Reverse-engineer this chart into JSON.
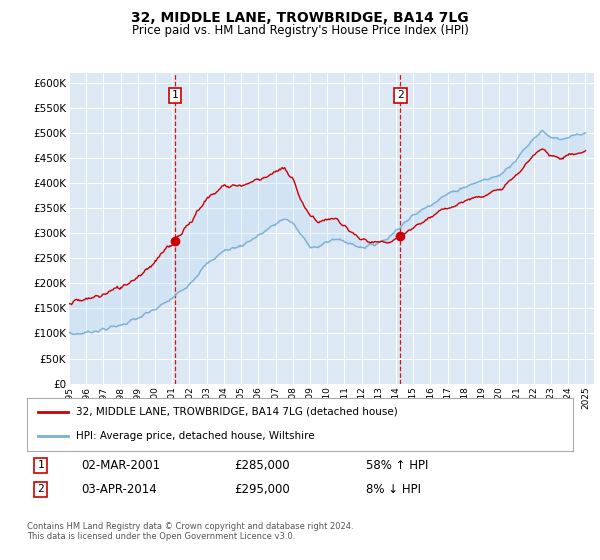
{
  "title": "32, MIDDLE LANE, TROWBRIDGE, BA14 7LG",
  "subtitle": "Price paid vs. HM Land Registry's House Price Index (HPI)",
  "legend_line1": "32, MIDDLE LANE, TROWBRIDGE, BA14 7LG (detached house)",
  "legend_line2": "HPI: Average price, detached house, Wiltshire",
  "sale1_date": "02-MAR-2001",
  "sale1_price": 285000,
  "sale1_pct": "58% ↑ HPI",
  "sale1_x": 2001.17,
  "sale2_date": "03-APR-2014",
  "sale2_price": 295000,
  "sale2_pct": "8% ↓ HPI",
  "sale2_x": 2014.25,
  "ylabel_ticks": [
    "£0",
    "£50K",
    "£100K",
    "£150K",
    "£200K",
    "£250K",
    "£300K",
    "£350K",
    "£400K",
    "£450K",
    "£500K",
    "£550K",
    "£600K"
  ],
  "ytick_vals": [
    0,
    50000,
    100000,
    150000,
    200000,
    250000,
    300000,
    350000,
    400000,
    450000,
    500000,
    550000,
    600000
  ],
  "xlim": [
    1995.0,
    2025.5
  ],
  "ylim": [
    0,
    620000
  ],
  "background_color": "#dce9f5",
  "line_color_red": "#cc0000",
  "line_color_blue": "#7ab0d4",
  "sale_dot_color": "#cc0000",
  "footer": "Contains HM Land Registry data © Crown copyright and database right 2024.\nThis data is licensed under the Open Government Licence v3.0.",
  "xtick_years": [
    1995,
    1996,
    1997,
    1998,
    1999,
    2000,
    2001,
    2002,
    2003,
    2004,
    2005,
    2006,
    2007,
    2008,
    2009,
    2010,
    2011,
    2012,
    2013,
    2014,
    2015,
    2016,
    2017,
    2018,
    2019,
    2020,
    2021,
    2022,
    2023,
    2024,
    2025
  ]
}
